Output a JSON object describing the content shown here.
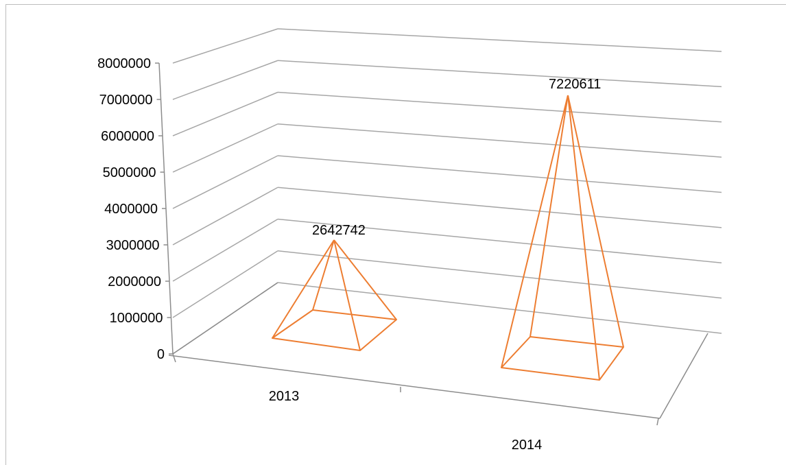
{
  "chart_data": {
    "type": "bar",
    "style": "3d-pyramid-wireframe",
    "categories": [
      "2013",
      "2014"
    ],
    "series": [
      {
        "values": [
          2642742,
          7220611
        ]
      }
    ],
    "data_labels": [
      "2642742",
      "7220611"
    ],
    "yticks": [
      "0",
      "1000000",
      "2000000",
      "3000000",
      "4000000",
      "5000000",
      "6000000",
      "7000000",
      "8000000"
    ],
    "ylim": [
      0,
      8000000
    ],
    "grid": true,
    "legend": "none",
    "colors": {
      "series": "#ED7D31",
      "grid": "#a6a6a6",
      "axis": "#8c8c8c"
    }
  }
}
